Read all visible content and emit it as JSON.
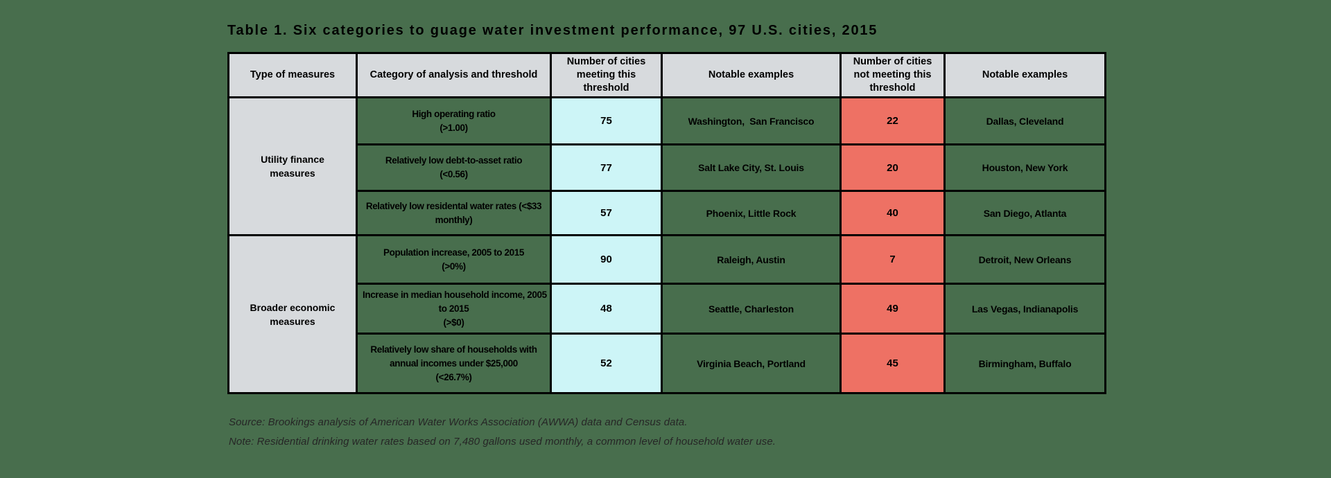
{
  "colors": {
    "page_background": "#486E4D",
    "header_fill": "#d7dadd",
    "meeting_fill": "#cdf5f7",
    "not_meeting_fill": "#ee7164",
    "border": "#000000",
    "text": "#000000",
    "footnote_text": "#262626"
  },
  "chart_data": {
    "type": "table",
    "title": "Table 1. Six categories to guage water investment performance, 97 U.S. cities, 2015",
    "columns": [
      "Type of measures",
      "Category of analysis and threshold",
      "Number of cities meeting this threshold",
      "Notable examples",
      "Number of cities not meeting this threshold",
      "Notable examples"
    ],
    "groups": [
      {
        "label": "Utility finance measures",
        "label_lines": [
          "Utility finance",
          "measures"
        ],
        "row_span": 3
      },
      {
        "label": "Broader economic measures",
        "label_lines": [
          "Broader economic",
          "measures"
        ],
        "row_span": 3
      }
    ],
    "rows": [
      {
        "group": "Utility finance measures",
        "category": "High operating ratio (>1.00)",
        "category_lines": [
          "High operating ratio",
          "(>1.00)"
        ],
        "cities_meeting": 75,
        "meeting_examples": "Washington,  San Francisco",
        "cities_not_meeting": 22,
        "not_meeting_examples": "Dallas, Cleveland"
      },
      {
        "group": "Utility finance measures",
        "category": "Relatively low debt-to-asset ratio (<0.56)",
        "category_lines": [
          "Relatively low debt-to-asset ratio",
          "(<0.56)"
        ],
        "cities_meeting": 77,
        "meeting_examples": "Salt Lake City, St. Louis",
        "cities_not_meeting": 20,
        "not_meeting_examples": "Houston, New York"
      },
      {
        "group": "Utility finance measures",
        "category": "Relatively low residental water rates (<$33 monthly)",
        "category_lines": [
          "Relatively low residental water rates (<$33",
          "monthly)"
        ],
        "cities_meeting": 57,
        "meeting_examples": "Phoenix, Little Rock",
        "cities_not_meeting": 40,
        "not_meeting_examples": "San Diego, Atlanta"
      },
      {
        "group": "Broader economic measures",
        "category": "Population increase, 2005 to 2015 (>0%)",
        "category_lines": [
          "Population increase, 2005 to 2015",
          "(>0%)"
        ],
        "cities_meeting": 90,
        "meeting_examples": "Raleigh, Austin",
        "cities_not_meeting": 7,
        "not_meeting_examples": "Detroit, New Orleans"
      },
      {
        "group": "Broader economic measures",
        "category": "Increase in median household income, 2005 to 2015 (>$0)",
        "category_lines": [
          "Increase in median household income, 2005",
          "to 2015",
          "(>$0)"
        ],
        "cities_meeting": 48,
        "meeting_examples": "Seattle, Charleston",
        "cities_not_meeting": 49,
        "not_meeting_examples": "Las Vegas, Indianapolis"
      },
      {
        "group": "Broader economic measures",
        "category": "Relatively low share of households with annual incomes under $25,000 (<26.7%)",
        "category_lines": [
          "Relatively low share of households with",
          "annual incomes under $25,000",
          "(<26.7%)"
        ],
        "cities_meeting": 52,
        "meeting_examples": "Virginia Beach, Portland",
        "cities_not_meeting": 45,
        "not_meeting_examples": "Birmingham, Buffalo"
      }
    ]
  },
  "footnotes": {
    "source": "Source: Brookings analysis of American Water Works Association (AWWA) data and Census data.",
    "note": "Note: Residential drinking water rates based on 7,480 gallons used monthly, a common level of household water use."
  }
}
